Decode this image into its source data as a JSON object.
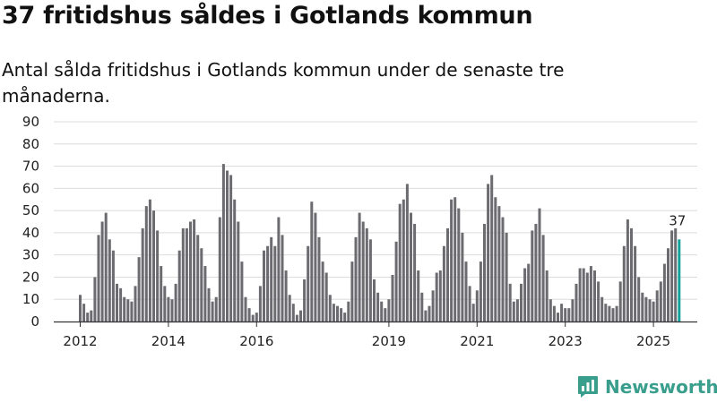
{
  "title": "37 fritidshus såldes i Gotlands kommun",
  "subtitle": "Antal sålda fritidshus i Gotlands kommun under de senaste tre månaderna.",
  "brand": {
    "name": "Newsworthy",
    "icon": "newsworthy-logo-icon",
    "color": "#3a9e8d"
  },
  "colors": {
    "bars": "#6b6b70",
    "highlight": "#17a39c",
    "grid": "#dcdcdc",
    "axis": "#333333"
  },
  "chart_data": {
    "type": "bar",
    "title": "37 fritidshus såldes i Gotlands kommun",
    "xlabel": "",
    "ylabel": "",
    "ylim": [
      0,
      90
    ],
    "yticks": [
      "0",
      "10",
      "20",
      "30",
      "40",
      "50",
      "60",
      "70",
      "80",
      "90"
    ],
    "xticks": [
      {
        "label": "2012",
        "index": 0
      },
      {
        "label": "2014",
        "index": 24
      },
      {
        "label": "2016",
        "index": 48
      },
      {
        "label": "2019",
        "index": 84
      },
      {
        "label": "2021",
        "index": 108
      },
      {
        "label": "2023",
        "index": 132
      },
      {
        "label": "2025",
        "index": 156
      }
    ],
    "grid": true,
    "last_value_label": "37",
    "series": [
      {
        "values": [
          12,
          8,
          4,
          5,
          20,
          39,
          45,
          49,
          37,
          32,
          17,
          15,
          11,
          10,
          9,
          16,
          29,
          42,
          52,
          55,
          50,
          41,
          25,
          16,
          11,
          10,
          17,
          32,
          42,
          42,
          45,
          46,
          39,
          33,
          25,
          15,
          9,
          11,
          47,
          71,
          68,
          66,
          55,
          45,
          27,
          11,
          6,
          3,
          4,
          16,
          32,
          34,
          38,
          34,
          47,
          39,
          23,
          12,
          8,
          3,
          5,
          19,
          34,
          54,
          49,
          38,
          27,
          22,
          12,
          8,
          7,
          6,
          4,
          9,
          27,
          38,
          49,
          45,
          42,
          37,
          19,
          13,
          9,
          6,
          10,
          21,
          36,
          53,
          55,
          62,
          49,
          44,
          23,
          13,
          5,
          7,
          14,
          22,
          23,
          34,
          42,
          55,
          56,
          51,
          40,
          27,
          16,
          8,
          14,
          27,
          44,
          62,
          66,
          56,
          52,
          47,
          40,
          17,
          9,
          10,
          17,
          24,
          26,
          41,
          44,
          51,
          39,
          23,
          10,
          7,
          4,
          8,
          6,
          6,
          10,
          17,
          24,
          24,
          22,
          25,
          23,
          18,
          11,
          8,
          7,
          6,
          7,
          18,
          34,
          46,
          42,
          34,
          20,
          13,
          11,
          10,
          9,
          14,
          18,
          26,
          33,
          41,
          42,
          37
        ]
      }
    ]
  }
}
